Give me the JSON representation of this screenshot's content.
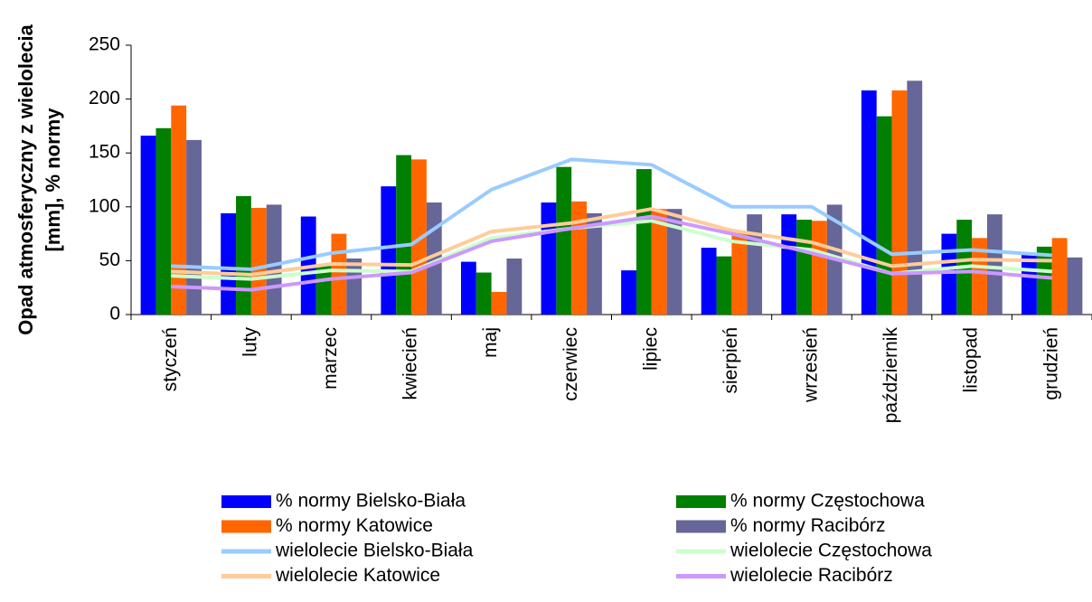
{
  "chart_data": {
    "type": "bar",
    "ylabel": [
      "Opad atmosferyczny z wielolecia",
      "[mm], % normy"
    ],
    "categories": [
      "styczeń",
      "luty",
      "marzec",
      "kwiecień",
      "maj",
      "czerwiec",
      "lipiec",
      "sierpień",
      "wrzesień",
      "październik",
      "listopad",
      "grudzień"
    ],
    "series": [
      {
        "name": "% normy Bielsko-Biała",
        "type": "bar",
        "color": "#0000ff",
        "values": [
          166,
          94,
          91,
          119,
          49,
          104,
          41,
          62,
          93,
          208,
          75,
          57
        ]
      },
      {
        "name": "% normy Częstochowa",
        "type": "bar",
        "color": "#007f00",
        "values": [
          173,
          110,
          45,
          148,
          39,
          137,
          135,
          54,
          88,
          184,
          88,
          63
        ]
      },
      {
        "name": "% normy Katowice",
        "type": "bar",
        "color": "#ff6600",
        "values": [
          194,
          99,
          75,
          144,
          21,
          105,
          98,
          76,
          87,
          208,
          71,
          71
        ]
      },
      {
        "name": "% normy Racibórz",
        "type": "bar",
        "color": "#666699",
        "values": [
          162,
          102,
          52,
          104,
          52,
          94,
          98,
          93,
          102,
          217,
          93,
          53
        ]
      },
      {
        "name": "wielolecie Bielsko-Biała",
        "type": "line",
        "color": "#99ccff",
        "values": [
          45,
          42,
          57,
          65,
          116,
          144,
          139,
          100,
          100,
          56,
          60,
          55
        ]
      },
      {
        "name": "wielolecie Częstochowa",
        "type": "line",
        "color": "#ccffcc",
        "values": [
          36,
          33,
          41,
          40,
          71,
          80,
          87,
          68,
          60,
          38,
          45,
          40
        ]
      },
      {
        "name": "wielolecie Katowice",
        "type": "line",
        "color": "#ffcc99",
        "values": [
          40,
          37,
          47,
          46,
          77,
          85,
          98,
          78,
          67,
          45,
          51,
          50
        ]
      },
      {
        "name": "wielolecie Racibórz",
        "type": "line",
        "color": "#cc99ff",
        "values": [
          26,
          23,
          33,
          39,
          68,
          80,
          91,
          75,
          57,
          38,
          40,
          34
        ]
      }
    ],
    "ylim": [
      0,
      250
    ],
    "yticks": [
      0,
      50,
      100,
      150,
      200,
      250
    ],
    "grid": false,
    "legend": "bottom"
  }
}
